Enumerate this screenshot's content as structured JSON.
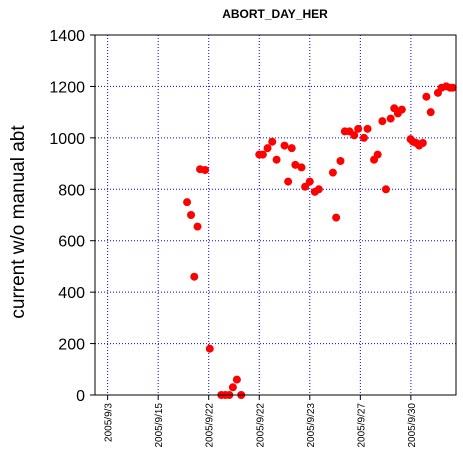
{
  "chart_data": {
    "type": "scatter",
    "title": "ABORT_DAY_HER",
    "xlabel": "",
    "ylabel": "current w/o manual abt",
    "ylim": [
      0,
      1400
    ],
    "yticks": [
      0,
      200,
      400,
      600,
      800,
      1000,
      1200,
      1400
    ],
    "xlim": [
      0,
      100
    ],
    "xticks": [
      {
        "x": 3.5,
        "label": "2005/9/3"
      },
      {
        "x": 17.5,
        "label": "2005/9/15"
      },
      {
        "x": 31.5,
        "label": "2005/9/22"
      },
      {
        "x": 45.5,
        "label": "2005/9/22"
      },
      {
        "x": 59.5,
        "label": "2005/9/23"
      },
      {
        "x": 73.5,
        "label": "2005/9/27"
      },
      {
        "x": 87.5,
        "label": "2005/9/30"
      }
    ],
    "grid": true,
    "marker_color": "#ff0000",
    "grid_color": "#0000ff",
    "points": [
      {
        "x": 25.5,
        "y": 750
      },
      {
        "x": 26.6,
        "y": 700
      },
      {
        "x": 27.5,
        "y": 460
      },
      {
        "x": 28.4,
        "y": 655
      },
      {
        "x": 29.1,
        "y": 878
      },
      {
        "x": 30.5,
        "y": 875
      },
      {
        "x": 31.8,
        "y": 180
      },
      {
        "x": 35.0,
        "y": 0
      },
      {
        "x": 36.1,
        "y": 0
      },
      {
        "x": 37.2,
        "y": 0
      },
      {
        "x": 38.2,
        "y": 30
      },
      {
        "x": 39.3,
        "y": 60
      },
      {
        "x": 40.5,
        "y": 0
      },
      {
        "x": 45.5,
        "y": 935
      },
      {
        "x": 46.5,
        "y": 935
      },
      {
        "x": 47.8,
        "y": 960
      },
      {
        "x": 49.1,
        "y": 985
      },
      {
        "x": 50.3,
        "y": 915
      },
      {
        "x": 52.5,
        "y": 970
      },
      {
        "x": 53.5,
        "y": 830
      },
      {
        "x": 54.5,
        "y": 960
      },
      {
        "x": 55.5,
        "y": 895
      },
      {
        "x": 57.2,
        "y": 885
      },
      {
        "x": 58.2,
        "y": 810
      },
      {
        "x": 59.5,
        "y": 830
      },
      {
        "x": 60.9,
        "y": 790
      },
      {
        "x": 62.0,
        "y": 800
      },
      {
        "x": 65.9,
        "y": 865
      },
      {
        "x": 66.8,
        "y": 690
      },
      {
        "x": 68.0,
        "y": 910
      },
      {
        "x": 69.2,
        "y": 1025
      },
      {
        "x": 70.5,
        "y": 1025
      },
      {
        "x": 71.8,
        "y": 1010
      },
      {
        "x": 72.9,
        "y": 1035
      },
      {
        "x": 74.5,
        "y": 1000
      },
      {
        "x": 75.5,
        "y": 1035
      },
      {
        "x": 77.3,
        "y": 915
      },
      {
        "x": 78.3,
        "y": 935
      },
      {
        "x": 79.6,
        "y": 1065
      },
      {
        "x": 80.6,
        "y": 800
      },
      {
        "x": 81.9,
        "y": 1075
      },
      {
        "x": 82.9,
        "y": 1115
      },
      {
        "x": 83.9,
        "y": 1095
      },
      {
        "x": 85.0,
        "y": 1110
      },
      {
        "x": 87.4,
        "y": 995
      },
      {
        "x": 88.1,
        "y": 985
      },
      {
        "x": 89.0,
        "y": 980
      },
      {
        "x": 89.8,
        "y": 970
      },
      {
        "x": 90.8,
        "y": 980
      },
      {
        "x": 91.8,
        "y": 1160
      },
      {
        "x": 93.0,
        "y": 1100
      },
      {
        "x": 95.0,
        "y": 1175
      },
      {
        "x": 96.0,
        "y": 1195
      },
      {
        "x": 97.3,
        "y": 1200
      },
      {
        "x": 98.4,
        "y": 1195
      },
      {
        "x": 99.1,
        "y": 1195
      }
    ]
  }
}
